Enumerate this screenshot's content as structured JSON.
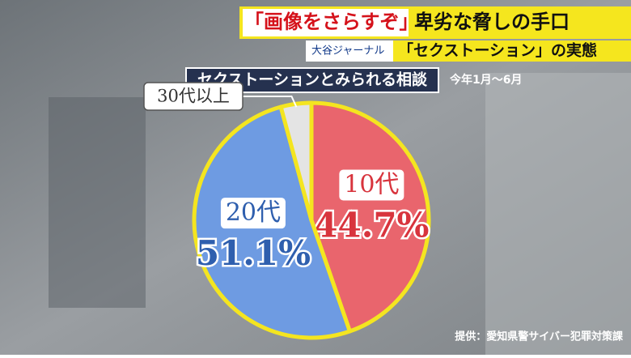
{
  "header": {
    "headline_quote": "「画像をさらすぞ」",
    "headline_rest": "卑劣な脅しの手口",
    "program": "大谷ジャーナル",
    "topic": "「セクストーション」の実態"
  },
  "chart_data": {
    "type": "pie",
    "title": "セクストーションとみられる相談",
    "subtitle": "今年1月～6月",
    "categories": [
      "10代",
      "20代",
      "30代以上"
    ],
    "values": [
      44.7,
      51.1,
      4.2
    ],
    "value_labels": [
      "44.7%",
      "51.1%",
      null
    ],
    "colors": [
      "#e9656d",
      "#6e9be2",
      "#e4e4e4"
    ],
    "outline": "#f4e520"
  },
  "source": "提供：愛知県警サイバー犯罪対策課"
}
